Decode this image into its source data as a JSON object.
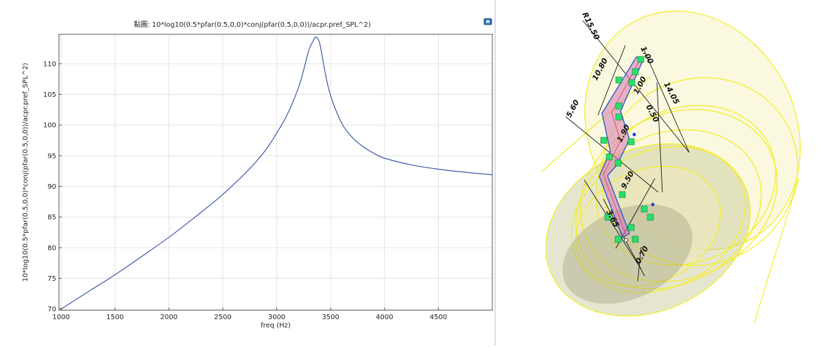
{
  "chart_data": {
    "type": "line",
    "title": "點圖: 10*log10(0.5*pfar(0.5,0,0)*conj(pfar(0.5,0,0))/acpr.pref_SPL^2)",
    "xlabel": "freq (Hz)",
    "ylabel": "10*log10(0.5*pfar(0.5,0,0)*conj(pfar(0.5,0,0))/acpr.pref_SPL^2)",
    "xlim": [
      980,
      5000
    ],
    "ylim": [
      69.8,
      114.8
    ],
    "xticks": [
      1000,
      1500,
      2000,
      2500,
      3000,
      3500,
      4000,
      4500
    ],
    "yticks": [
      70,
      75,
      80,
      85,
      90,
      95,
      100,
      105,
      110
    ],
    "grid": true,
    "series": [
      {
        "color": "#3a55a8",
        "x": [
          1000,
          1250,
          1500,
          1750,
          2000,
          2250,
          2500,
          2750,
          2900,
          3000,
          3100,
          3200,
          3250,
          3300,
          3350,
          3370,
          3400,
          3450,
          3500,
          3600,
          3700,
          3800,
          3900,
          4000,
          4250,
          4500,
          4750,
          5000
        ],
        "y": [
          70.0,
          72.8,
          75.6,
          78.6,
          81.7,
          85.1,
          88.7,
          92.9,
          96.0,
          98.7,
          101.8,
          106.0,
          109.0,
          112.3,
          114.1,
          114.3,
          113.2,
          108.5,
          104.8,
          100.4,
          98.0,
          96.5,
          95.4,
          94.6,
          93.5,
          92.8,
          92.3,
          91.9
        ]
      }
    ]
  },
  "cad": {
    "dimensions": [
      "R15.50",
      "10.80",
      "5.60",
      "1.00",
      "1.00",
      "14.05",
      "0.50",
      "1.90",
      "9.50",
      "3.65",
      "0.70"
    ]
  }
}
